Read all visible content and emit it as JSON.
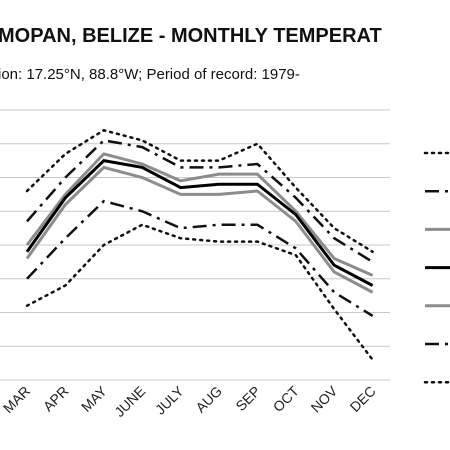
{
  "chart_data": {
    "type": "line",
    "title": "MOPAN, BELIZE - MONTHLY TEMPERAT",
    "subtitle": "ion: 17.25°N, 88.8°W; Period of record: 1979-",
    "categories": [
      "MAR",
      "APR",
      "MAY",
      "JUNE",
      "JULY",
      "AUG",
      "SEP",
      "OCT",
      "NOV",
      "DEC"
    ],
    "grid": true,
    "legend": "right",
    "series": [
      {
        "values": [
          86,
          97,
          104,
          101,
          95,
          95,
          100,
          87,
          75,
          68
        ],
        "color": "#111111",
        "dash": "dot"
      },
      {
        "values": [
          77,
          90,
          101,
          99,
          93,
          93,
          94,
          84,
          72,
          65
        ],
        "color": "#111111",
        "dash": "dashdot"
      },
      {
        "values": [
          70,
          85,
          97,
          94,
          89,
          91,
          91,
          80,
          66,
          61
        ],
        "color": "#8c8c8c",
        "dash": "solid"
      },
      {
        "values": [
          68,
          84,
          95,
          93,
          87,
          88,
          88,
          79,
          64,
          58
        ],
        "color": "#000000",
        "dash": "solid"
      },
      {
        "values": [
          66,
          82,
          93,
          90,
          85,
          85,
          86,
          77,
          62,
          56
        ],
        "color": "#8c8c8c",
        "dash": "solid"
      },
      {
        "values": [
          60,
          72,
          83,
          80,
          75,
          76,
          76,
          69,
          56,
          49
        ],
        "color": "#111111",
        "dash": "dashdot"
      },
      {
        "values": [
          52,
          58,
          70,
          76,
          72,
          71,
          71,
          67,
          51,
          36
        ],
        "color": "#111111",
        "dash": "dot"
      }
    ]
  }
}
